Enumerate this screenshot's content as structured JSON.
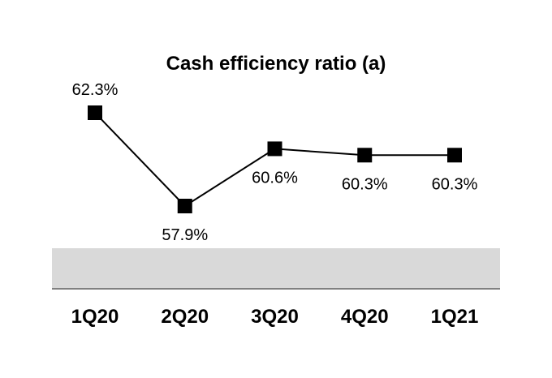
{
  "chart_data": {
    "type": "line",
    "title": "Cash efficiency ratio (a)",
    "categories": [
      "1Q20",
      "2Q20",
      "3Q20",
      "4Q20",
      "1Q21"
    ],
    "series": [
      {
        "values": [
          62.3,
          57.9,
          60.6,
          60.3,
          60.3
        ],
        "labels": [
          "62.3%",
          "57.9%",
          "60.6%",
          "60.3%",
          "60.3%"
        ]
      }
    ],
    "xlabel": "",
    "ylabel": "",
    "grid": false,
    "legend": "none",
    "colors": {
      "line": "#000000",
      "marker": "#000000",
      "band": "#d9d9d9",
      "axis": "#808080"
    }
  }
}
